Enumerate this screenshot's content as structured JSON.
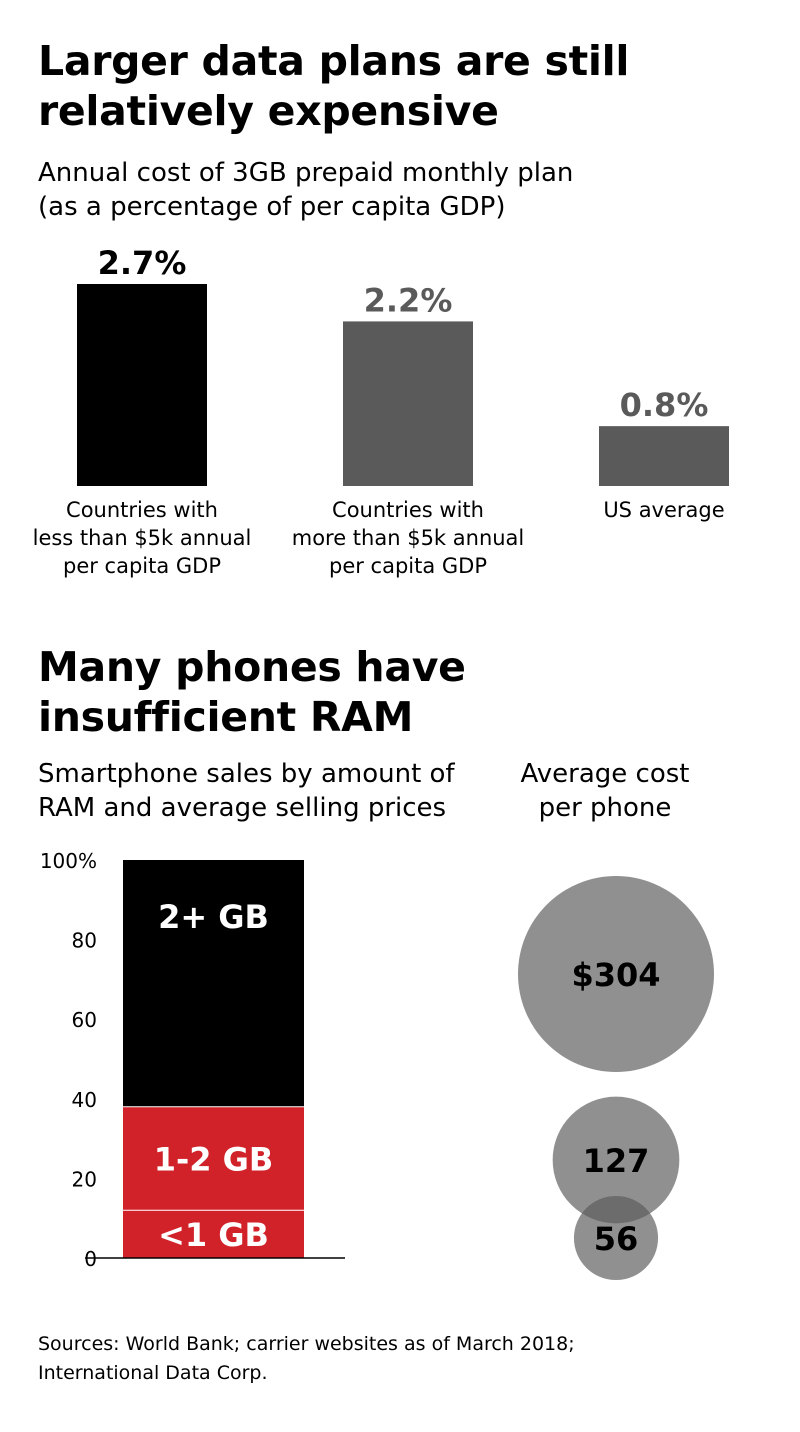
{
  "chart_data": [
    {
      "type": "bar",
      "title_lines": [
        "Larger data plans are still",
        "relatively expensive"
      ],
      "subtitle_lines": [
        "Annual cost of 3GB prepaid monthly plan",
        "(as a percentage of per capita GDP)"
      ],
      "categories": [
        [
          "Countries with",
          "less than $5k annual",
          "per capita GDP"
        ],
        [
          "Countries with",
          "more than $5k annual",
          "per capita GDP"
        ],
        [
          "US average"
        ]
      ],
      "values": [
        2.7,
        2.2,
        0.8
      ],
      "value_labels": [
        "2.7%",
        "2.2%",
        "0.8%"
      ],
      "colors": [
        "#000000",
        "#5a5a5a",
        "#5a5a5a"
      ],
      "ylim": [
        0,
        2.7
      ]
    },
    {
      "type": "bar",
      "stacked": true,
      "title_lines": [
        "Many phones have",
        "insufficient RAM"
      ],
      "subtitle_lines": [
        "Smartphone sales by amount of",
        "RAM and average selling prices"
      ],
      "ylim": [
        0,
        100
      ],
      "yticks": [
        0,
        20,
        40,
        60,
        80,
        100
      ],
      "ytick_labels": [
        "0",
        "20",
        "40",
        "60",
        "80",
        "100%"
      ],
      "series": [
        {
          "name": "<1 GB",
          "value": 12,
          "color": "#d1222a"
        },
        {
          "name": "1-2 GB",
          "value": 26,
          "color": "#d1222a"
        },
        {
          "name": "2+ GB",
          "value": 62,
          "color": "#000000"
        }
      ]
    },
    {
      "type": "scatter",
      "style": "bubble",
      "title_lines": [
        "Average cost",
        "per phone"
      ],
      "values": [
        304,
        127,
        56
      ],
      "value_labels": [
        "$304",
        "127",
        "56"
      ],
      "color": "#5c5c5c"
    }
  ],
  "sources_lines": [
    "Sources: World Bank; carrier websites as of March 2018;",
    "International Data Corp."
  ]
}
